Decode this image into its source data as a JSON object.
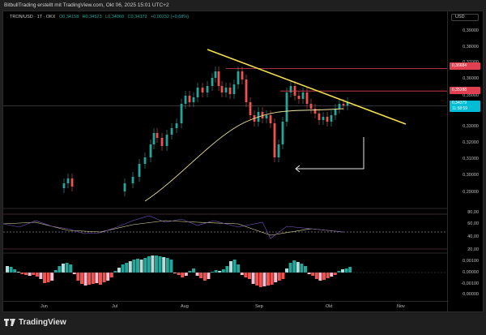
{
  "header": {
    "caption": "BitbullTrading erstellt mit TradingView.com, Okt 06, 2025 15:01 UTC+2"
  },
  "legend": {
    "symbol": "TRON/USD · 1T · OKX",
    "open": "O0,34158",
    "high": "H0,34523",
    "low": "L0,34060",
    "close": "C0,34379",
    "change": "+0,00232 (+0,68%)"
  },
  "axis": {
    "currency": "USD",
    "price_ticks": [
      "0,39000",
      "0,38000",
      "0,37000",
      "0,36000",
      "0,35000",
      "0,33000",
      "0,32000",
      "0,31000",
      "0,30000",
      "0,29000"
    ],
    "rsi_ticks": [
      "80,00",
      "60,00",
      "40,00",
      "20,00"
    ],
    "macd_ticks": [
      "0,00100",
      "0,00000",
      "-0,00100",
      "0,00000"
    ],
    "x_labels": [
      "Jun",
      "Jul",
      "Aug",
      "Sep",
      "Okt",
      "Nov"
    ]
  },
  "price_labels": {
    "resistance_high": "0,36684",
    "resistance_mid": "0,35288",
    "current_price": "0,34379",
    "countdown": "11:58:59"
  },
  "colors": {
    "up": "#26a69a",
    "down": "#ef5350",
    "trendline": "#f5e04c",
    "ma": "#f0e6a0",
    "resistance": "#e04050",
    "current": "#00bcd4",
    "rsi": "#7e57c2"
  },
  "brand": {
    "name": "TradingView"
  },
  "chart_data": {
    "type": "candlestick",
    "title": "TRON/USD · 1T · OKX",
    "xlabel": "",
    "ylabel": "USD",
    "ylim": [
      0.285,
      0.395
    ],
    "x": [
      "Jun",
      "Jul",
      "Aug",
      "Sep",
      "Okt",
      "Nov"
    ],
    "ohlc_last": {
      "open": 0.34158,
      "high": 0.34523,
      "low": 0.3406,
      "close": 0.34379,
      "change": 0.00232,
      "change_pct": 0.68
    },
    "horizontal_levels": [
      {
        "name": "resistance",
        "value": 0.36684,
        "color": "#e04050"
      },
      {
        "name": "resistance",
        "value": 0.35288,
        "color": "#e04050"
      },
      {
        "name": "current",
        "value": 0.34379,
        "color": "#00bcd4"
      }
    ],
    "annotations": [
      {
        "type": "trendline",
        "from": [
          "late Jul",
          0.372
        ],
        "to": [
          "mid Okt",
          0.334
        ],
        "color": "#f5e04c"
      },
      {
        "type": "arrow",
        "direction": "left",
        "note": "bracket pointing left from Okt at ~0.305"
      }
    ],
    "approx_closes": {
      "Jun": 0.275,
      "Jul": 0.305,
      "Aug_peak": 0.364,
      "Aug_end": 0.345,
      "Sep_low": 0.3,
      "Sep_mid": 0.352,
      "Okt": 0.3438
    },
    "subpanes": [
      {
        "name": "RSI",
        "ylim": [
          20,
          80
        ],
        "levels": [
          70,
          50,
          30
        ]
      },
      {
        "name": "MACD",
        "ticks": [
          0.001,
          0,
          -0.001
        ]
      }
    ]
  }
}
